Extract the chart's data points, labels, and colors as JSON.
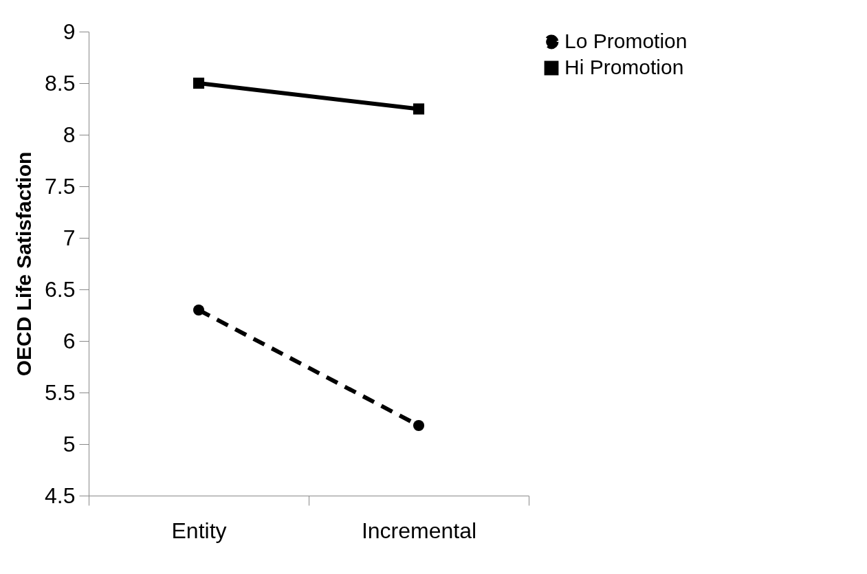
{
  "chart_data": {
    "type": "line",
    "ylabel": "OECD Life Satisfaction",
    "categories": [
      "Entity",
      "Incremental"
    ],
    "series": [
      {
        "name": "Lo Promotion",
        "color": "#000000",
        "values": [
          6.3,
          5.18
        ],
        "marker": "circle",
        "line_style": "dashed"
      },
      {
        "name": "Hi Promotion",
        "color": "#000000",
        "values": [
          8.5,
          8.25
        ],
        "marker": "square",
        "line_style": "solid"
      }
    ],
    "ylim": [
      4.5,
      9
    ],
    "yticks": [
      4.5,
      5,
      5.5,
      6,
      6.5,
      7,
      7.5,
      8,
      8.5,
      9
    ],
    "grid": false,
    "legend": "right"
  }
}
